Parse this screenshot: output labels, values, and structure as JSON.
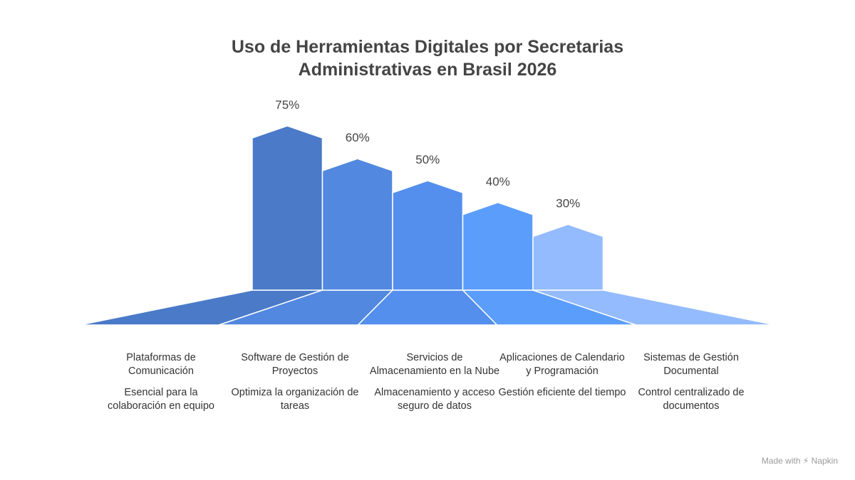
{
  "title": {
    "line1": "Uso de Herramientas Digitales por Secretarias",
    "line2": "Administrativas en Brasil 2026"
  },
  "chart_data": {
    "type": "bar",
    "title": "Uso de Herramientas Digitales por Secretarias Administrativas en Brasil 2026",
    "categories": [
      "Plataformas de Comunicación",
      "Software de Gestión de Proyectos",
      "Servicios de Almacenamiento en la Nube",
      "Aplicaciones de Calendario y Programación",
      "Sistemas de Gestión Documental"
    ],
    "values": [
      75,
      60,
      50,
      40,
      30
    ],
    "value_labels": [
      "75%",
      "60%",
      "50%",
      "40%",
      "30%"
    ],
    "unit": "%",
    "grid": false,
    "legend": "none",
    "colors": [
      "#4A7AC8",
      "#5288DF",
      "#548FEE",
      "#5B9DFB",
      "#94BBFD"
    ]
  },
  "columns": [
    {
      "name": "Plataformas de Comunicación",
      "description": "Esencial para la colaboración en equipo"
    },
    {
      "name": "Software de Gestión de Proyectos",
      "description": "Optimiza la organización de tareas"
    },
    {
      "name": "Servicios de Almacenamiento en la Nube",
      "description": "Almacenamiento y acceso seguro de datos"
    },
    {
      "name": "Aplicaciones de Calendario y Programación",
      "description": "Gestión eficiente del tiempo"
    },
    {
      "name": "Sistemas de Gestión Documental",
      "description": "Control centralizado de documentos"
    }
  ],
  "footer": {
    "made_with": "Made with",
    "brand": "Napkin",
    "brand_icon": "napkin-logo-icon"
  }
}
